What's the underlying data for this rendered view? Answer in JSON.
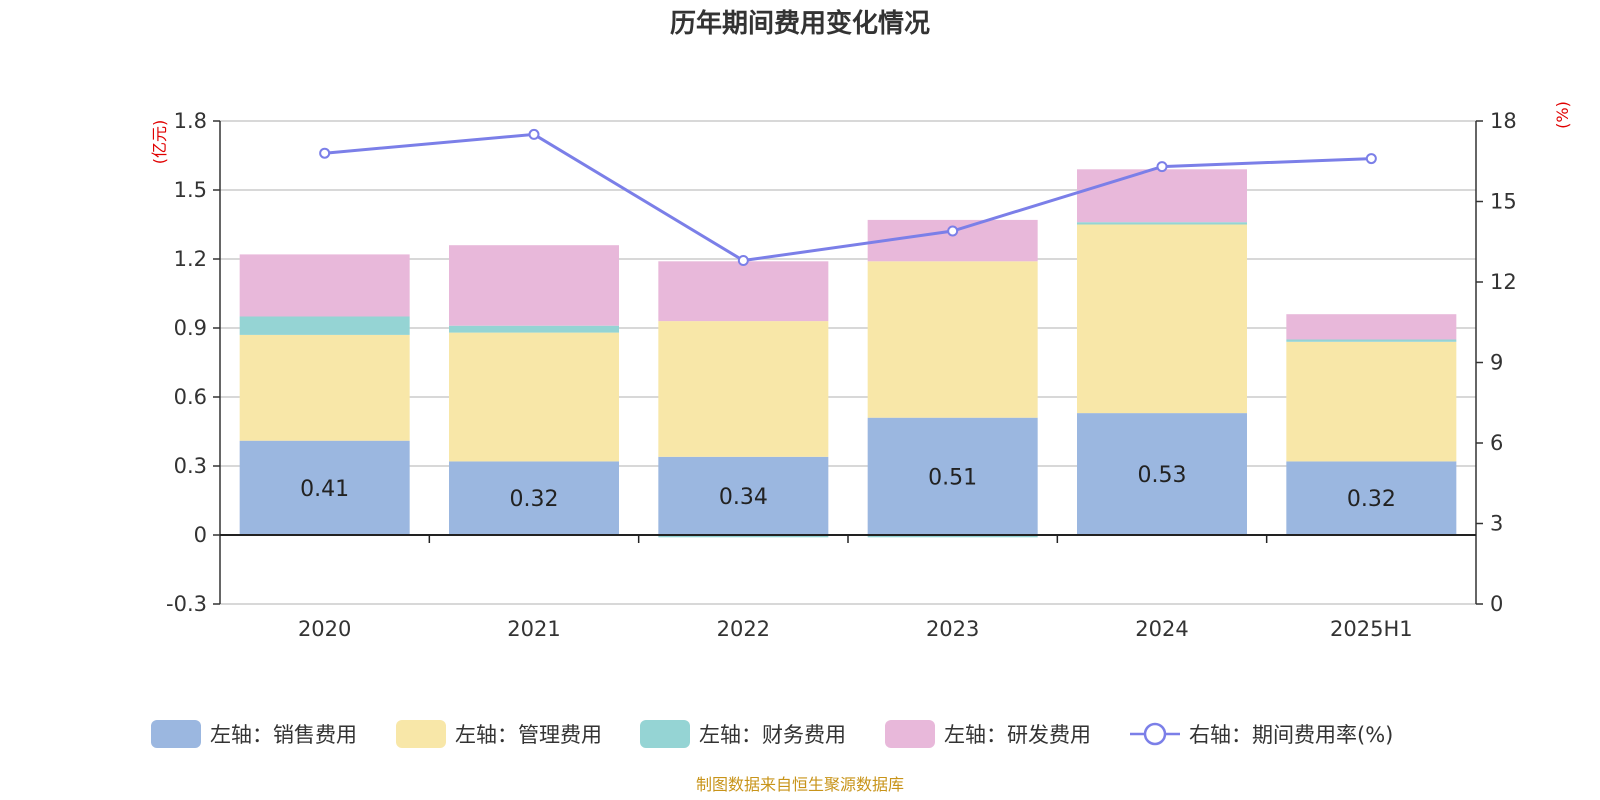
{
  "chart_data": {
    "type": "bar",
    "title": "历年期间费用变化情况",
    "categories": [
      "2020",
      "2021",
      "2022",
      "2023",
      "2024",
      "2025H1"
    ],
    "left_axis": {
      "unit": "(亿元)",
      "ylim": [
        -0.3,
        1.8
      ],
      "ticks": [
        "-0.3",
        "0",
        "0.3",
        "0.6",
        "0.9",
        "1.2",
        "1.5",
        "1.8"
      ]
    },
    "right_axis": {
      "unit": "(%)",
      "ylim": [
        0,
        18
      ],
      "ticks": [
        "0",
        "3",
        "6",
        "9",
        "12",
        "15",
        "18"
      ]
    },
    "series": [
      {
        "name": "左轴：销售费用",
        "axis": "left",
        "type": "bar",
        "color": "#9bb7e0",
        "values": [
          0.41,
          0.32,
          0.34,
          0.51,
          0.53,
          0.32
        ],
        "labels": [
          "0.41",
          "0.32",
          "0.34",
          "0.51",
          "0.53",
          "0.32"
        ]
      },
      {
        "name": "左轴：管理费用",
        "axis": "left",
        "type": "bar",
        "color": "#f8e7a8",
        "values": [
          0.46,
          0.56,
          0.59,
          0.68,
          0.82,
          0.52
        ]
      },
      {
        "name": "左轴：财务费用",
        "axis": "left",
        "type": "bar",
        "color": "#95d4d4",
        "values": [
          0.08,
          0.03,
          -0.01,
          -0.01,
          0.01,
          0.01
        ]
      },
      {
        "name": "左轴：研发费用",
        "axis": "left",
        "type": "bar",
        "color": "#e8b8da",
        "values": [
          0.27,
          0.35,
          0.26,
          0.18,
          0.23,
          0.11
        ]
      },
      {
        "name": "右轴：期间费用率(%)",
        "axis": "right",
        "type": "line",
        "color": "#7b7fe8",
        "values": [
          16.8,
          17.5,
          12.8,
          13.9,
          16.3,
          16.6
        ]
      }
    ],
    "legend_position": "bottom",
    "grid": true
  },
  "source_note": "制图数据来自恒生聚源数据库"
}
